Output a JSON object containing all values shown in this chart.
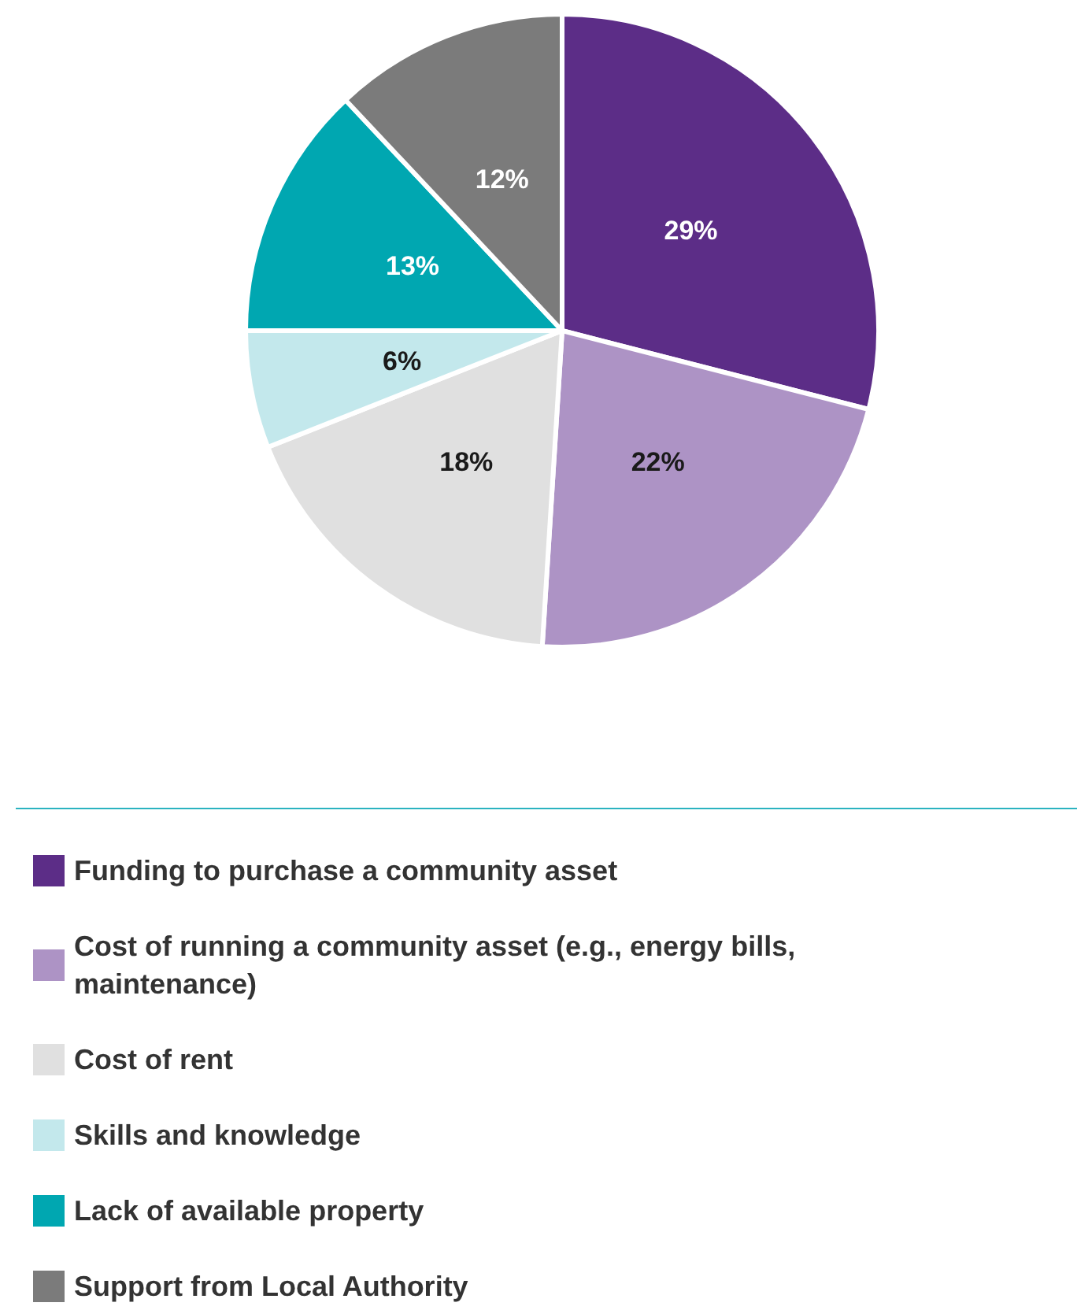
{
  "chart_data": {
    "type": "pie",
    "categories": [
      "Funding to purchase a community asset",
      "Cost of running a community asset (e.g., energy bills, maintenance)",
      "Cost of rent",
      "Skills and knowledge",
      "Lack of available property",
      "Support from Local Authority"
    ],
    "values": [
      29,
      22,
      18,
      6,
      13,
      12
    ],
    "colors": [
      "#5c2d87",
      "#ad93c5",
      "#e0e0e0",
      "#c3e8ec",
      "#00a7b1",
      "#7b7b7b"
    ],
    "value_labels": [
      "29%",
      "22%",
      "18%",
      "6%",
      "13%",
      "12%"
    ],
    "legend": "bottom left"
  }
}
